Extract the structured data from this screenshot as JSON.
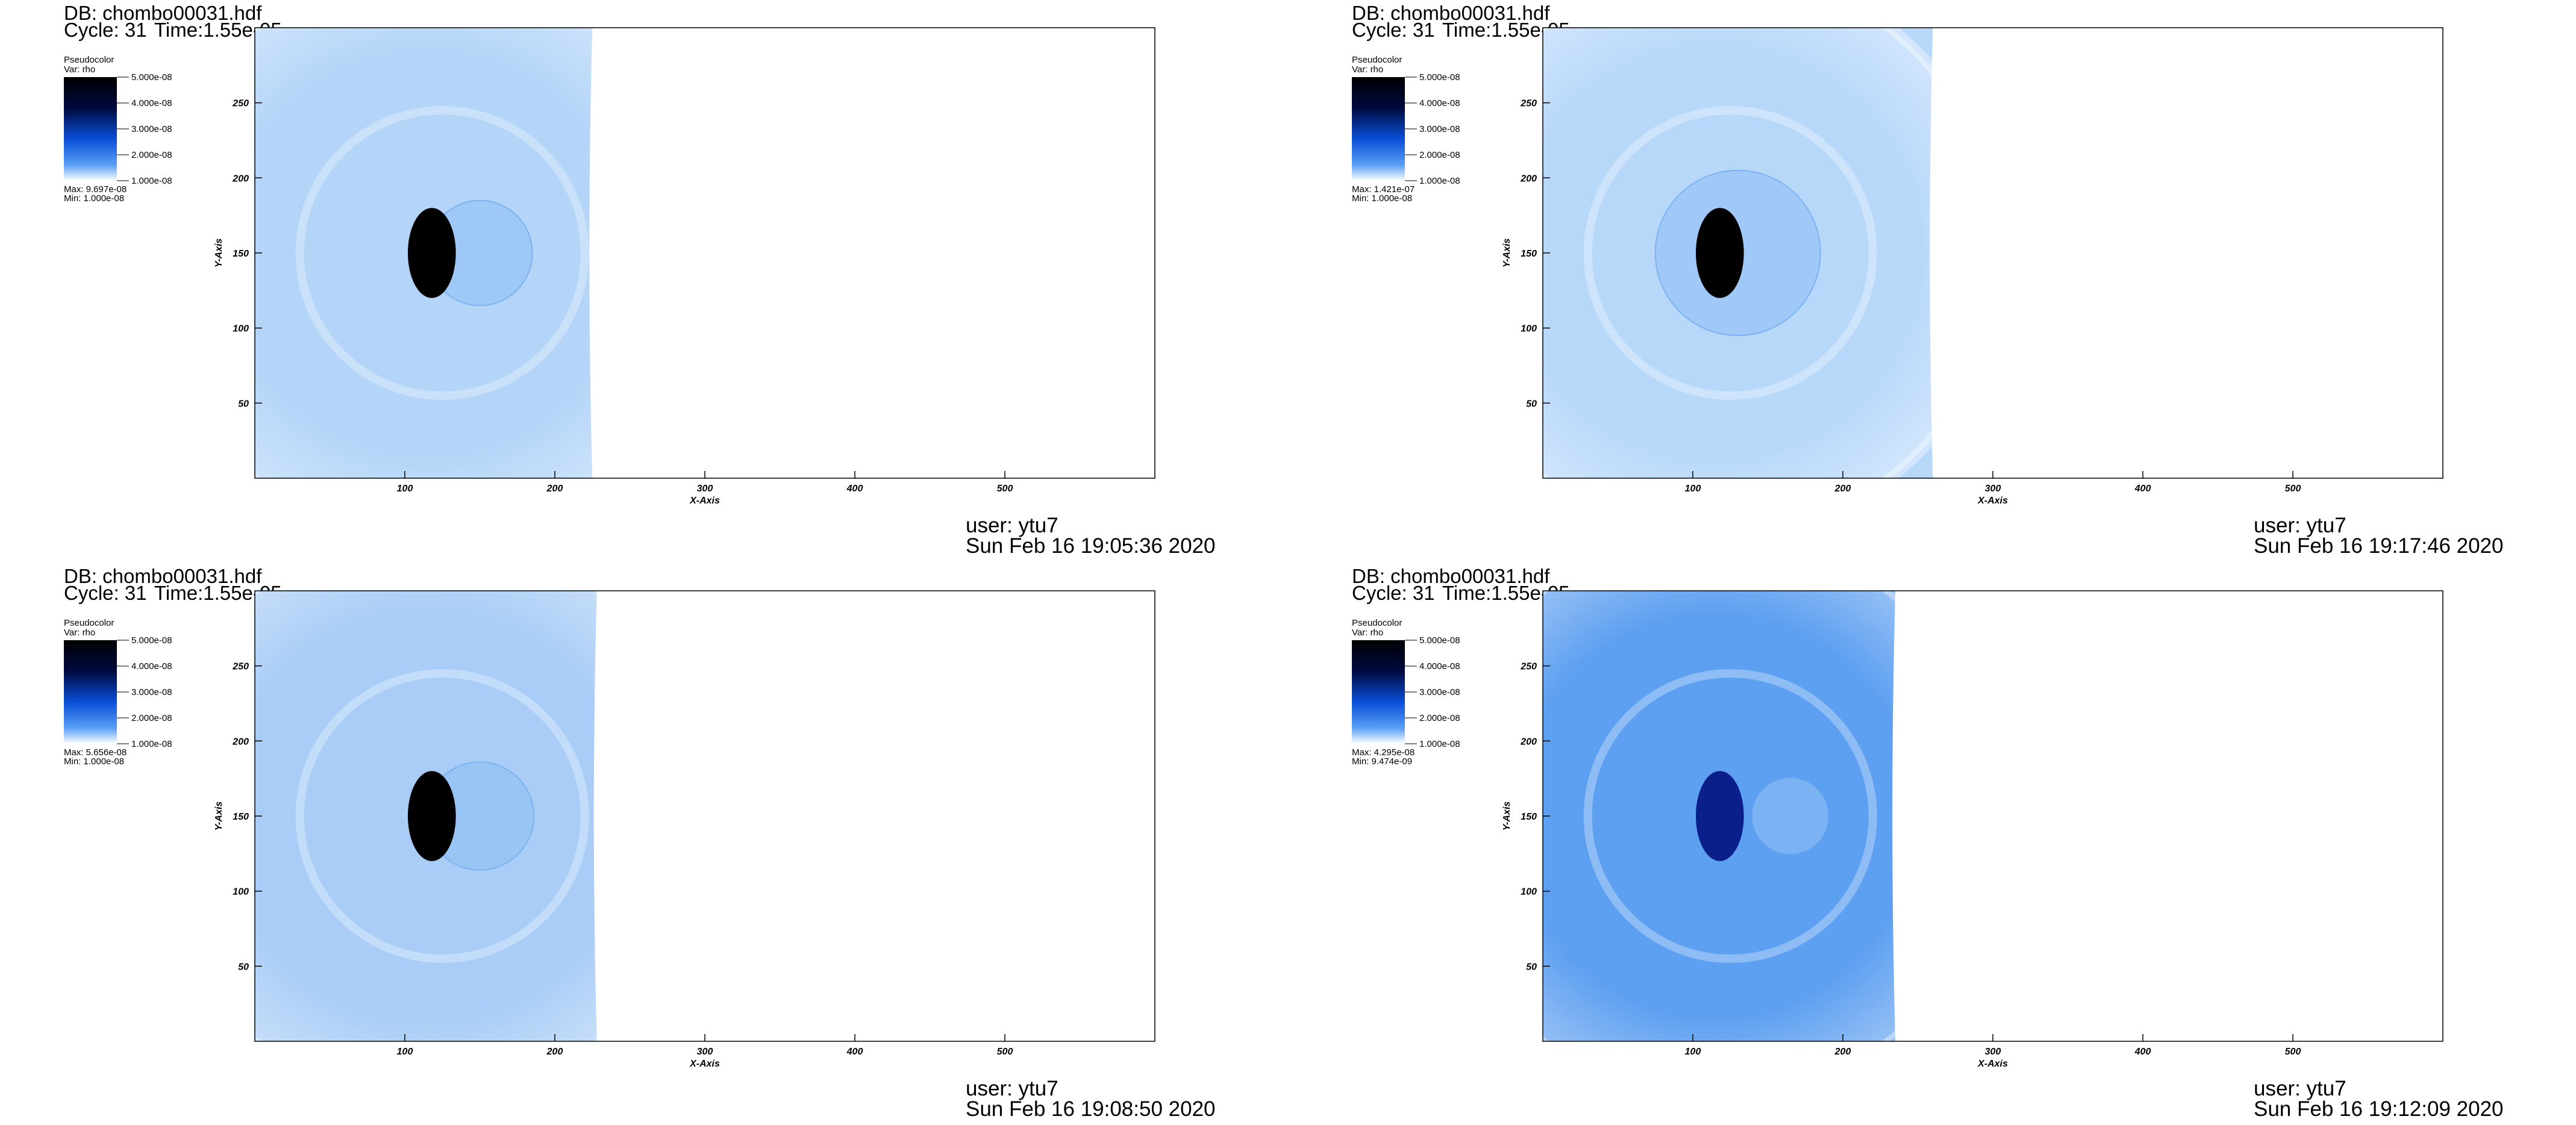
{
  "chart_data": [
    {
      "type": "pseudocolor",
      "title": "DB: chombo00031.hdf",
      "cycle": "Cycle: 31",
      "time": "Time:1.55e-05",
      "legend_title": "Pseudocolor",
      "variable": "Var: rho",
      "colorbar_ticks": [
        {
          "value": 5e-08,
          "label": "5.000e-08"
        },
        {
          "value": 4e-08,
          "label": "4.000e-08"
        },
        {
          "value": 3e-08,
          "label": "3.000e-08"
        },
        {
          "value": 2e-08,
          "label": "2.000e-08"
        },
        {
          "value": 1e-08,
          "label": "1.000e-08"
        }
      ],
      "max_label": "Max:  9.697e-08",
      "min_label": "Min:  1.000e-08",
      "xlabel": "X-Axis",
      "ylabel": "Y-Axis",
      "xlim": [
        0,
        600
      ],
      "ylim": [
        0,
        300
      ],
      "xticks": [
        100,
        200,
        300,
        400,
        500
      ],
      "yticks": [
        50,
        100,
        150,
        200,
        250
      ],
      "user": "user: ytu7",
      "date": "Sun Feb 16 19:05:36 2020"
    },
    {
      "type": "pseudocolor",
      "title": "DB: chombo00031.hdf",
      "cycle": "Cycle: 31",
      "time": "Time:1.55e-05",
      "legend_title": "Pseudocolor",
      "variable": "Var: rho",
      "colorbar_ticks": [
        {
          "value": 5e-08,
          "label": "5.000e-08"
        },
        {
          "value": 4e-08,
          "label": "4.000e-08"
        },
        {
          "value": 3e-08,
          "label": "3.000e-08"
        },
        {
          "value": 2e-08,
          "label": "2.000e-08"
        },
        {
          "value": 1e-08,
          "label": "1.000e-08"
        }
      ],
      "max_label": "Max:  1.421e-07",
      "min_label": "Min:  1.000e-08",
      "xlabel": "X-Axis",
      "ylabel": "Y-Axis",
      "xlim": [
        0,
        600
      ],
      "ylim": [
        0,
        300
      ],
      "xticks": [
        100,
        200,
        300,
        400,
        500
      ],
      "yticks": [
        50,
        100,
        150,
        200,
        250
      ],
      "user": "user: ytu7",
      "date": "Sun Feb 16 19:17:46 2020"
    },
    {
      "type": "pseudocolor",
      "title": "DB: chombo00031.hdf",
      "cycle": "Cycle: 31",
      "time": "Time:1.55e-05",
      "legend_title": "Pseudocolor",
      "variable": "Var: rho",
      "colorbar_ticks": [
        {
          "value": 5e-08,
          "label": "5.000e-08"
        },
        {
          "value": 4e-08,
          "label": "4.000e-08"
        },
        {
          "value": 3e-08,
          "label": "3.000e-08"
        },
        {
          "value": 2e-08,
          "label": "2.000e-08"
        },
        {
          "value": 1e-08,
          "label": "1.000e-08"
        }
      ],
      "max_label": "Max:  5.656e-08",
      "min_label": "Min:  1.000e-08",
      "xlabel": "X-Axis",
      "ylabel": "Y-Axis",
      "xlim": [
        0,
        600
      ],
      "ylim": [
        0,
        300
      ],
      "xticks": [
        100,
        200,
        300,
        400,
        500
      ],
      "yticks": [
        50,
        100,
        150,
        200,
        250
      ],
      "user": "user: ytu7",
      "date": "Sun Feb 16 19:08:50 2020"
    },
    {
      "type": "pseudocolor",
      "title": "DB: chombo00031.hdf",
      "cycle": "Cycle: 31",
      "time": "Time:1.55e-05",
      "legend_title": "Pseudocolor",
      "variable": "Var: rho",
      "colorbar_ticks": [
        {
          "value": 5e-08,
          "label": "5.000e-08"
        },
        {
          "value": 4e-08,
          "label": "4.000e-08"
        },
        {
          "value": 3e-08,
          "label": "3.000e-08"
        },
        {
          "value": 2e-08,
          "label": "2.000e-08"
        },
        {
          "value": 1e-08,
          "label": "1.000e-08"
        }
      ],
      "max_label": "Max:  4.295e-08",
      "min_label": "Min:  9.474e-09",
      "xlabel": "X-Axis",
      "ylabel": "Y-Axis",
      "xlim": [
        0,
        600
      ],
      "ylim": [
        0,
        300
      ],
      "xticks": [
        100,
        200,
        300,
        400,
        500
      ],
      "yticks": [
        50,
        100,
        150,
        200,
        250
      ],
      "user": "user: ytu7",
      "date": "Sun Feb 16 19:12:09 2020"
    }
  ]
}
